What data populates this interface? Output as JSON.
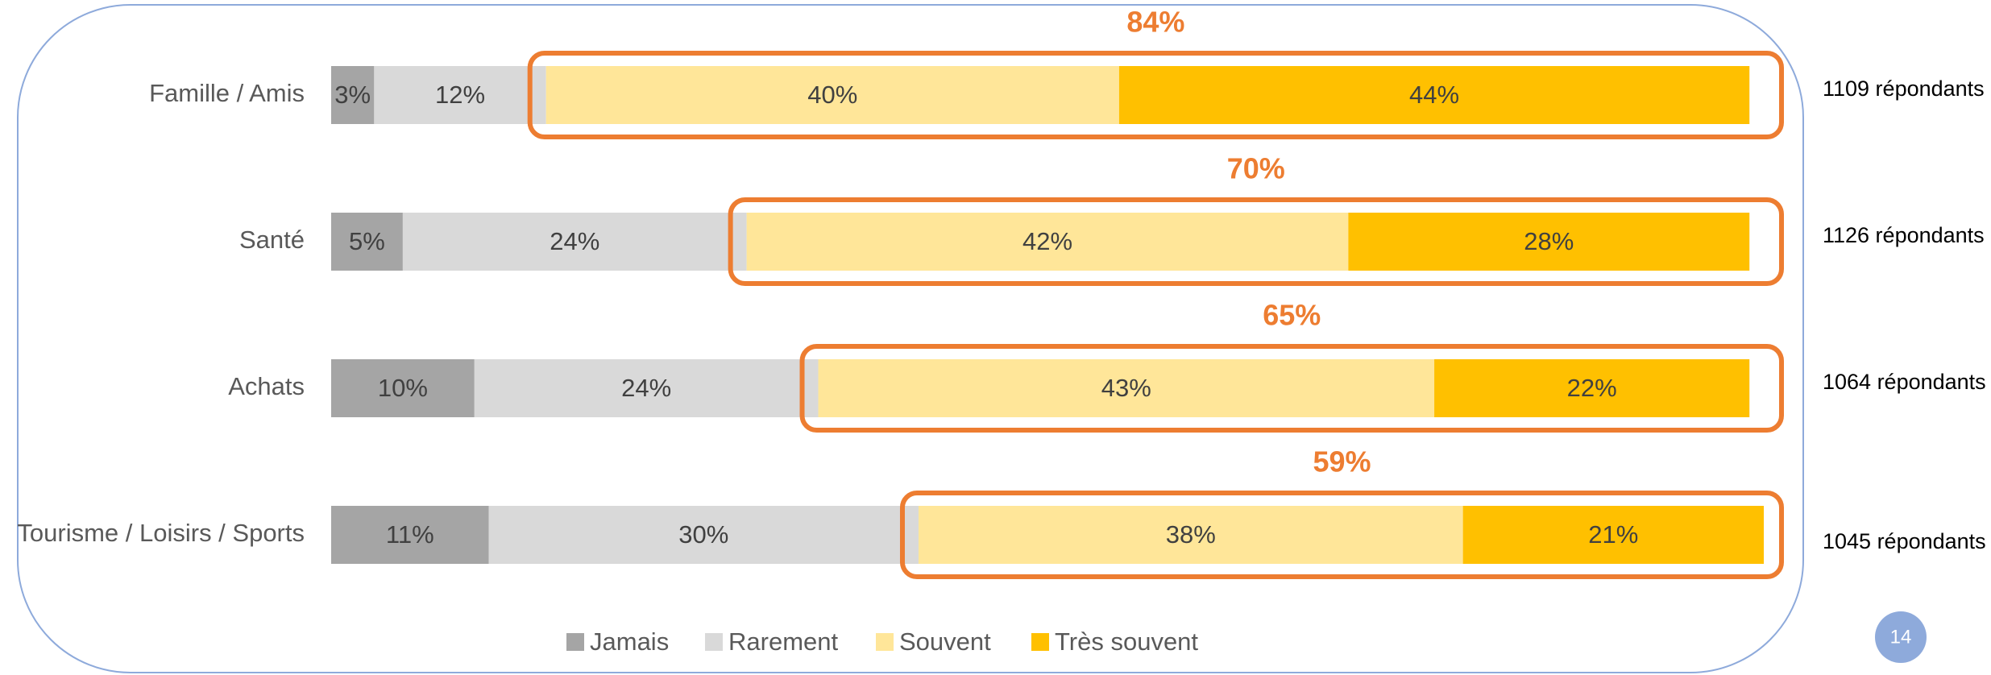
{
  "chart_data": {
    "type": "stacked-bar-horizontal",
    "categories": [
      "Famille / Amis",
      "Santé",
      "Achats",
      "Tourisme  / Loisirs / Sports"
    ],
    "series": [
      {
        "name": "Jamais",
        "color": "#a5a5a5",
        "values": [
          3,
          5,
          10,
          11
        ],
        "value_labels": [
          "3%",
          "5%",
          "10%",
          "11%"
        ]
      },
      {
        "name": "Rarement",
        "color": "#d9d9d9",
        "values": [
          12,
          24,
          24,
          30
        ],
        "value_labels": [
          "12%",
          "24%",
          "24%",
          "30%"
        ]
      },
      {
        "name": "Souvent",
        "color": "#ffe699",
        "values": [
          40,
          42,
          43,
          38
        ],
        "value_labels": [
          "40%",
          "42%",
          "43%",
          "38%"
        ]
      },
      {
        "name": "Très souvent",
        "color": "#ffc000",
        "values": [
          44,
          28,
          22,
          21
        ],
        "value_labels": [
          "44%",
          "28%",
          "22%",
          "21%"
        ]
      }
    ],
    "highlight": {
      "color": "#ed7d31",
      "values": [
        84,
        70,
        65,
        59
      ],
      "value_labels": [
        "84%",
        "70%",
        "65%",
        "59%"
      ]
    },
    "annotations": [
      "1109 répondants",
      "1126 répondants",
      "1064 répondants",
      "1045 répondants"
    ],
    "xlim": [
      0,
      100
    ],
    "page_number": "14"
  }
}
